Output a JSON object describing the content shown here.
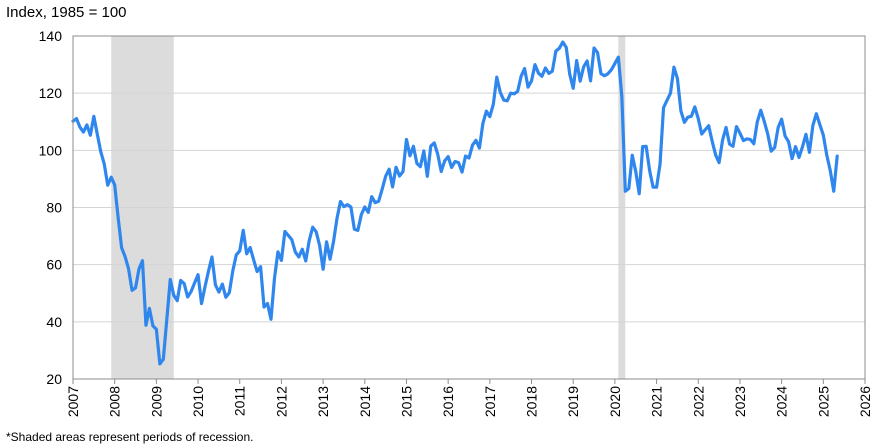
{
  "chart_data": {
    "type": "line",
    "title": "",
    "ylabel": "Index, 1985 = 100",
    "xlabel": "",
    "footnote": "*Shaded areas represent periods of recession.",
    "xlim": [
      2007,
      2026
    ],
    "ylim": [
      20,
      140
    ],
    "y_ticks": [
      20,
      40,
      60,
      80,
      100,
      120,
      140
    ],
    "x_ticks": [
      2007,
      2008,
      2009,
      2010,
      2011,
      2012,
      2013,
      2014,
      2015,
      2016,
      2017,
      2018,
      2019,
      2020,
      2021,
      2022,
      2023,
      2024,
      2025,
      2026
    ],
    "x_tick_labels": [
      "2007",
      "2008",
      "2009",
      "2010",
      "2011",
      "2012",
      "2013",
      "2014",
      "2015",
      "2016",
      "2017",
      "2018",
      "2019",
      "2020",
      "2021",
      "2022",
      "2023",
      "2024",
      "2025",
      "2026"
    ],
    "grid": "horizontal",
    "legend": "none",
    "colors": {
      "line": "#2f87ee",
      "recession": "#dcdcdc",
      "grid": "#d4d4d4",
      "frame": "#8c8c8c"
    },
    "recessions": [
      {
        "start": "2007-12",
        "end": "2009-06"
      },
      {
        "start": "2020-02",
        "end": "2020-04"
      }
    ],
    "series": [
      {
        "values": [
          [
            "2007-01",
            110.2
          ],
          [
            "2007-02",
            111.1
          ],
          [
            "2007-03",
            108.1
          ],
          [
            "2007-04",
            106.4
          ],
          [
            "2007-05",
            108.9
          ],
          [
            "2007-06",
            105.3
          ],
          [
            "2007-07",
            111.9
          ],
          [
            "2007-08",
            105.6
          ],
          [
            "2007-09",
            99.5
          ],
          [
            "2007-10",
            95.2
          ],
          [
            "2007-11",
            87.8
          ],
          [
            "2007-12",
            90.6
          ],
          [
            "2008-01",
            87.9
          ],
          [
            "2008-02",
            76.4
          ],
          [
            "2008-03",
            65.9
          ],
          [
            "2008-04",
            62.8
          ],
          [
            "2008-05",
            58.5
          ],
          [
            "2008-06",
            51.0
          ],
          [
            "2008-07",
            51.9
          ],
          [
            "2008-08",
            58.5
          ],
          [
            "2008-09",
            61.4
          ],
          [
            "2008-10",
            38.8
          ],
          [
            "2008-11",
            44.7
          ],
          [
            "2008-12",
            38.6
          ],
          [
            "2009-01",
            37.4
          ],
          [
            "2009-02",
            25.3
          ],
          [
            "2009-03",
            26.9
          ],
          [
            "2009-04",
            40.8
          ],
          [
            "2009-05",
            54.8
          ],
          [
            "2009-06",
            49.3
          ],
          [
            "2009-07",
            47.4
          ],
          [
            "2009-08",
            54.5
          ],
          [
            "2009-09",
            53.4
          ],
          [
            "2009-10",
            48.7
          ],
          [
            "2009-11",
            50.6
          ],
          [
            "2009-12",
            53.6
          ],
          [
            "2010-01",
            56.5
          ],
          [
            "2010-02",
            46.4
          ],
          [
            "2010-03",
            52.3
          ],
          [
            "2010-04",
            57.7
          ],
          [
            "2010-05",
            62.7
          ],
          [
            "2010-06",
            52.9
          ],
          [
            "2010-07",
            50.4
          ],
          [
            "2010-08",
            53.2
          ],
          [
            "2010-09",
            48.6
          ],
          [
            "2010-10",
            50.2
          ],
          [
            "2010-11",
            57.8
          ],
          [
            "2010-12",
            63.4
          ],
          [
            "2011-01",
            64.8
          ],
          [
            "2011-02",
            72.0
          ],
          [
            "2011-03",
            63.8
          ],
          [
            "2011-04",
            66.0
          ],
          [
            "2011-05",
            61.7
          ],
          [
            "2011-06",
            57.6
          ],
          [
            "2011-07",
            59.3
          ],
          [
            "2011-08",
            45.2
          ],
          [
            "2011-09",
            46.4
          ],
          [
            "2011-10",
            40.9
          ],
          [
            "2011-11",
            55.2
          ],
          [
            "2011-12",
            64.5
          ],
          [
            "2012-01",
            61.5
          ],
          [
            "2012-02",
            71.6
          ],
          [
            "2012-03",
            70.2
          ],
          [
            "2012-04",
            68.7
          ],
          [
            "2012-05",
            64.4
          ],
          [
            "2012-06",
            62.7
          ],
          [
            "2012-07",
            65.4
          ],
          [
            "2012-08",
            61.3
          ],
          [
            "2012-09",
            68.4
          ],
          [
            "2012-10",
            73.1
          ],
          [
            "2012-11",
            71.5
          ],
          [
            "2012-12",
            66.7
          ],
          [
            "2013-01",
            58.4
          ],
          [
            "2013-02",
            68.0
          ],
          [
            "2013-03",
            61.9
          ],
          [
            "2013-04",
            68.1
          ],
          [
            "2013-05",
            76.2
          ],
          [
            "2013-06",
            82.1
          ],
          [
            "2013-07",
            80.3
          ],
          [
            "2013-08",
            81.0
          ],
          [
            "2013-09",
            80.2
          ],
          [
            "2013-10",
            72.4
          ],
          [
            "2013-11",
            72.0
          ],
          [
            "2013-12",
            77.5
          ],
          [
            "2014-01",
            80.2
          ],
          [
            "2014-02",
            78.3
          ],
          [
            "2014-03",
            83.8
          ],
          [
            "2014-04",
            81.7
          ],
          [
            "2014-05",
            82.2
          ],
          [
            "2014-06",
            86.4
          ],
          [
            "2014-07",
            90.9
          ],
          [
            "2014-08",
            93.4
          ],
          [
            "2014-09",
            87.2
          ],
          [
            "2014-10",
            94.1
          ],
          [
            "2014-11",
            91.0
          ],
          [
            "2014-12",
            92.6
          ],
          [
            "2015-01",
            103.8
          ],
          [
            "2015-02",
            98.1
          ],
          [
            "2015-03",
            101.4
          ],
          [
            "2015-04",
            95.4
          ],
          [
            "2015-05",
            94.3
          ],
          [
            "2015-06",
            99.8
          ],
          [
            "2015-07",
            90.9
          ],
          [
            "2015-08",
            101.5
          ],
          [
            "2015-09",
            102.6
          ],
          [
            "2015-10",
            98.6
          ],
          [
            "2015-11",
            92.6
          ],
          [
            "2015-12",
            96.3
          ],
          [
            "2016-01",
            97.8
          ],
          [
            "2016-02",
            94.0
          ],
          [
            "2016-03",
            96.1
          ],
          [
            "2016-04",
            95.7
          ],
          [
            "2016-05",
            92.4
          ],
          [
            "2016-06",
            98.0
          ],
          [
            "2016-07",
            97.3
          ],
          [
            "2016-08",
            101.8
          ],
          [
            "2016-09",
            103.5
          ],
          [
            "2016-10",
            100.8
          ],
          [
            "2016-11",
            109.4
          ],
          [
            "2016-12",
            113.7
          ],
          [
            "2017-01",
            111.8
          ],
          [
            "2017-02",
            116.1
          ],
          [
            "2017-03",
            125.6
          ],
          [
            "2017-04",
            120.3
          ],
          [
            "2017-05",
            117.6
          ],
          [
            "2017-06",
            117.3
          ],
          [
            "2017-07",
            120.0
          ],
          [
            "2017-08",
            119.8
          ],
          [
            "2017-09",
            120.6
          ],
          [
            "2017-10",
            125.9
          ],
          [
            "2017-11",
            128.6
          ],
          [
            "2017-12",
            122.1
          ],
          [
            "2018-01",
            124.3
          ],
          [
            "2018-02",
            130.0
          ],
          [
            "2018-03",
            127.0
          ],
          [
            "2018-04",
            125.9
          ],
          [
            "2018-05",
            128.8
          ],
          [
            "2018-06",
            126.9
          ],
          [
            "2018-07",
            127.7
          ],
          [
            "2018-08",
            134.7
          ],
          [
            "2018-09",
            135.7
          ],
          [
            "2018-10",
            137.9
          ],
          [
            "2018-11",
            136.0
          ],
          [
            "2018-12",
            126.6
          ],
          [
            "2019-01",
            121.7
          ],
          [
            "2019-02",
            131.4
          ],
          [
            "2019-03",
            124.2
          ],
          [
            "2019-04",
            129.2
          ],
          [
            "2019-05",
            131.3
          ],
          [
            "2019-06",
            124.3
          ],
          [
            "2019-07",
            135.8
          ],
          [
            "2019-08",
            134.2
          ],
          [
            "2019-09",
            126.8
          ],
          [
            "2019-10",
            126.1
          ],
          [
            "2019-11",
            126.8
          ],
          [
            "2019-12",
            128.2
          ],
          [
            "2020-01",
            130.4
          ],
          [
            "2020-02",
            132.6
          ],
          [
            "2020-03",
            118.8
          ],
          [
            "2020-04",
            85.7
          ],
          [
            "2020-05",
            86.6
          ],
          [
            "2020-06",
            98.3
          ],
          [
            "2020-07",
            92.6
          ],
          [
            "2020-08",
            84.8
          ],
          [
            "2020-09",
            101.3
          ],
          [
            "2020-10",
            101.4
          ],
          [
            "2020-11",
            92.9
          ],
          [
            "2020-12",
            87.1
          ],
          [
            "2021-01",
            87.1
          ],
          [
            "2021-02",
            95.2
          ],
          [
            "2021-03",
            114.9
          ],
          [
            "2021-04",
            117.5
          ],
          [
            "2021-05",
            120.0
          ],
          [
            "2021-06",
            129.1
          ],
          [
            "2021-07",
            125.1
          ],
          [
            "2021-08",
            113.8
          ],
          [
            "2021-09",
            109.8
          ],
          [
            "2021-10",
            111.6
          ],
          [
            "2021-11",
            111.9
          ],
          [
            "2021-12",
            115.2
          ],
          [
            "2022-01",
            111.1
          ],
          [
            "2022-02",
            105.7
          ],
          [
            "2022-03",
            107.2
          ],
          [
            "2022-04",
            108.6
          ],
          [
            "2022-05",
            103.2
          ],
          [
            "2022-06",
            98.4
          ],
          [
            "2022-07",
            95.7
          ],
          [
            "2022-08",
            103.6
          ],
          [
            "2022-09",
            108.0
          ],
          [
            "2022-10",
            102.2
          ],
          [
            "2022-11",
            101.4
          ],
          [
            "2022-12",
            108.3
          ],
          [
            "2023-01",
            106.0
          ],
          [
            "2023-02",
            103.4
          ],
          [
            "2023-03",
            104.0
          ],
          [
            "2023-04",
            103.8
          ],
          [
            "2023-05",
            102.3
          ],
          [
            "2023-06",
            110.0
          ],
          [
            "2023-07",
            114.0
          ],
          [
            "2023-08",
            110.1
          ],
          [
            "2023-09",
            105.7
          ],
          [
            "2023-10",
            99.7
          ],
          [
            "2023-11",
            101.0
          ],
          [
            "2023-12",
            108.0
          ],
          [
            "2024-01",
            110.9
          ],
          [
            "2024-02",
            105.0
          ],
          [
            "2024-03",
            103.0
          ],
          [
            "2024-04",
            97.1
          ],
          [
            "2024-05",
            101.3
          ],
          [
            "2024-06",
            97.5
          ],
          [
            "2024-07",
            101.2
          ],
          [
            "2024-08",
            105.6
          ],
          [
            "2024-09",
            99.3
          ],
          [
            "2024-10",
            108.7
          ],
          [
            "2024-11",
            112.8
          ],
          [
            "2024-12",
            109.0
          ],
          [
            "2025-01",
            105.3
          ],
          [
            "2025-02",
            98.3
          ],
          [
            "2025-03",
            92.9
          ],
          [
            "2025-04",
            85.7
          ],
          [
            "2025-05",
            98.0
          ]
        ]
      }
    ]
  }
}
